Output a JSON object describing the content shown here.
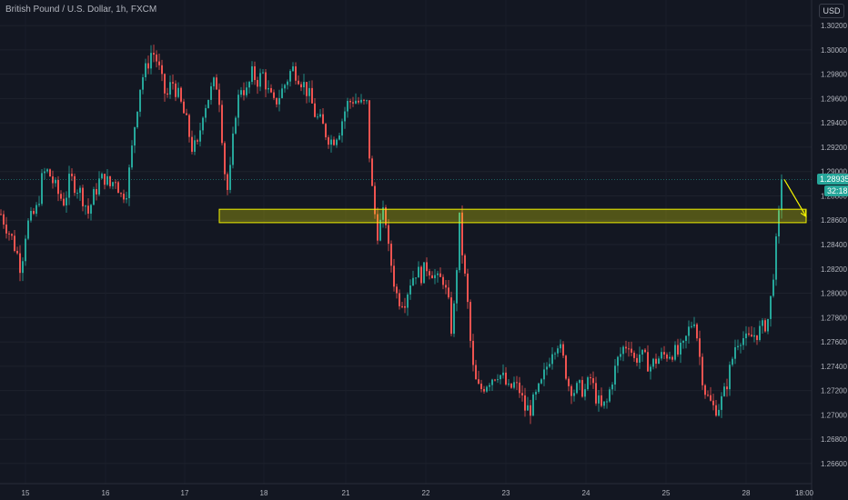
{
  "header": {
    "title": "British Pound / U.S. Dollar, 1h, FXCM",
    "currency": "USD"
  },
  "last_price": {
    "label": "1.28935",
    "countdown": "32:18",
    "value": 1.28935
  },
  "chart_data": {
    "type": "candlestick",
    "title": "British Pound / U.S. Dollar, 1h, FXCM",
    "ylim": [
      1.2645,
      1.3035
    ],
    "y_ticks": [
      1.302,
      1.3,
      1.298,
      1.296,
      1.294,
      1.292,
      1.29,
      1.288,
      1.286,
      1.284,
      1.282,
      1.28,
      1.278,
      1.276,
      1.274,
      1.272,
      1.27,
      1.268,
      1.266
    ],
    "y_tick_labels": [
      "1.30200",
      "1.30000",
      "1.29800",
      "1.29600",
      "1.29400",
      "1.29200",
      "1.29000",
      "1.28800",
      "1.28600",
      "1.28400",
      "1.28200",
      "1.28000",
      "1.27800",
      "1.27600",
      "1.27400",
      "1.27200",
      "1.27000",
      "1.26800",
      "1.26600"
    ],
    "x_labels": [
      "15",
      "16",
      "17",
      "18",
      "21",
      "22",
      "23",
      "24",
      "25",
      "28",
      "18:00"
    ],
    "grid": true,
    "colors": {
      "up": "#26a69a",
      "down": "#ef5350",
      "zone": "#f5f500",
      "arrow": "#f5f500",
      "last": "#26a69a"
    },
    "waypoints": [
      [
        0,
        1.2865
      ],
      [
        6,
        1.2855
      ],
      [
        12,
        1.2845
      ],
      [
        18,
        1.2832
      ],
      [
        22,
        1.282
      ],
      [
        28,
        1.2855
      ],
      [
        34,
        1.2862
      ],
      [
        40,
        1.287
      ],
      [
        46,
        1.2898
      ],
      [
        52,
        1.29
      ],
      [
        58,
        1.289
      ],
      [
        64,
        1.288
      ],
      [
        70,
        1.2875
      ],
      [
        76,
        1.2895
      ],
      [
        82,
        1.2888
      ],
      [
        86,
        1.2885
      ],
      [
        92,
        1.2875
      ],
      [
        96,
        1.2866
      ],
      [
        102,
        1.288
      ],
      [
        108,
        1.2892
      ],
      [
        114,
        1.2895
      ],
      [
        120,
        1.2888
      ],
      [
        126,
        1.2895
      ],
      [
        132,
        1.288
      ],
      [
        138,
        1.2885
      ],
      [
        142,
        1.2905
      ],
      [
        148,
        1.2945
      ],
      [
        154,
        1.2975
      ],
      [
        160,
        1.2985
      ],
      [
        166,
        1.3
      ],
      [
        172,
        1.299
      ],
      [
        178,
        1.297
      ],
      [
        182,
        1.296
      ],
      [
        188,
        1.2975
      ],
      [
        196,
        1.296
      ],
      [
        204,
        1.294
      ],
      [
        210,
        1.292
      ],
      [
        216,
        1.292
      ],
      [
        222,
        1.295
      ],
      [
        230,
        1.2965
      ],
      [
        236,
        1.2975
      ],
      [
        240,
        1.296
      ],
      [
        244,
        1.292
      ],
      [
        248,
        1.288
      ],
      [
        252,
        1.29
      ],
      [
        258,
        1.295
      ],
      [
        264,
        1.297
      ],
      [
        270,
        1.2965
      ],
      [
        276,
        1.298
      ],
      [
        282,
        1.2975
      ],
      [
        288,
        1.298
      ],
      [
        294,
        1.2965
      ],
      [
        300,
        1.2955
      ],
      [
        308,
        1.2965
      ],
      [
        314,
        1.2975
      ],
      [
        320,
        1.2985
      ],
      [
        326,
        1.298
      ],
      [
        334,
        1.297
      ],
      [
        340,
        1.296
      ],
      [
        346,
        1.2945
      ],
      [
        352,
        1.294
      ],
      [
        358,
        1.293
      ],
      [
        364,
        1.2925
      ],
      [
        372,
        1.2935
      ],
      [
        380,
        1.2955
      ],
      [
        388,
        1.296
      ],
      [
        396,
        1.2955
      ],
      [
        402,
        1.2955
      ],
      [
        406,
        1.29
      ],
      [
        410,
        1.287
      ],
      [
        414,
        1.285
      ],
      [
        418,
        1.286
      ],
      [
        422,
        1.2868
      ],
      [
        426,
        1.2835
      ],
      [
        430,
        1.282
      ],
      [
        434,
        1.28
      ],
      [
        438,
        1.2795
      ],
      [
        444,
        1.2795
      ],
      [
        450,
        1.281
      ],
      [
        456,
        1.2818
      ],
      [
        462,
        1.2815
      ],
      [
        468,
        1.2822
      ],
      [
        474,
        1.2818
      ],
      [
        480,
        1.281
      ],
      [
        486,
        1.2812
      ],
      [
        492,
        1.279
      ],
      [
        496,
        1.2765
      ],
      [
        500,
        1.281
      ],
      [
        504,
        1.286
      ],
      [
        508,
        1.2825
      ],
      [
        512,
        1.28
      ],
      [
        516,
        1.276
      ],
      [
        520,
        1.273
      ],
      [
        526,
        1.272
      ],
      [
        532,
        1.2725
      ],
      [
        538,
        1.273
      ],
      [
        546,
        1.2735
      ],
      [
        552,
        1.273
      ],
      [
        558,
        1.272
      ],
      [
        564,
        1.2725
      ],
      [
        570,
        1.272
      ],
      [
        576,
        1.2705
      ],
      [
        582,
        1.2705
      ],
      [
        588,
        1.2715
      ],
      [
        594,
        1.2725
      ],
      [
        600,
        1.274
      ],
      [
        606,
        1.2755
      ],
      [
        612,
        1.276
      ],
      [
        618,
        1.2745
      ],
      [
        624,
        1.2725
      ],
      [
        630,
        1.272
      ],
      [
        636,
        1.2722
      ],
      [
        642,
        1.272
      ],
      [
        648,
        1.273
      ],
      [
        654,
        1.2715
      ],
      [
        660,
        1.2705
      ],
      [
        666,
        1.271
      ],
      [
        672,
        1.273
      ],
      [
        678,
        1.2745
      ],
      [
        684,
        1.2755
      ],
      [
        690,
        1.276
      ],
      [
        696,
        1.2745
      ],
      [
        702,
        1.275
      ],
      [
        708,
        1.2745
      ],
      [
        714,
        1.274
      ],
      [
        720,
        1.2745
      ],
      [
        726,
        1.2748
      ],
      [
        732,
        1.275
      ],
      [
        738,
        1.2752
      ],
      [
        744,
        1.275
      ],
      [
        750,
        1.2755
      ],
      [
        756,
        1.277
      ],
      [
        762,
        1.278
      ],
      [
        766,
        1.276
      ],
      [
        770,
        1.2735
      ],
      [
        774,
        1.272
      ],
      [
        778,
        1.2712
      ],
      [
        784,
        1.2705
      ],
      [
        790,
        1.2708
      ],
      [
        796,
        1.272
      ],
      [
        802,
        1.274
      ],
      [
        808,
        1.276
      ],
      [
        814,
        1.2765
      ],
      [
        820,
        1.276
      ],
      [
        826,
        1.2765
      ],
      [
        832,
        1.2768
      ],
      [
        838,
        1.2772
      ],
      [
        844,
        1.278
      ],
      [
        848,
        1.281
      ],
      [
        852,
        1.284
      ],
      [
        856,
        1.287
      ],
      [
        859,
        1.28935
      ]
    ],
    "annotations": [
      {
        "type": "zone",
        "x_start": 241,
        "x_end": 886,
        "y_top": 1.2869,
        "y_bottom": 1.2858
      },
      {
        "type": "arrow",
        "from": [
          862,
          1.28935
        ],
        "to": [
          886,
          1.2863
        ]
      }
    ]
  }
}
